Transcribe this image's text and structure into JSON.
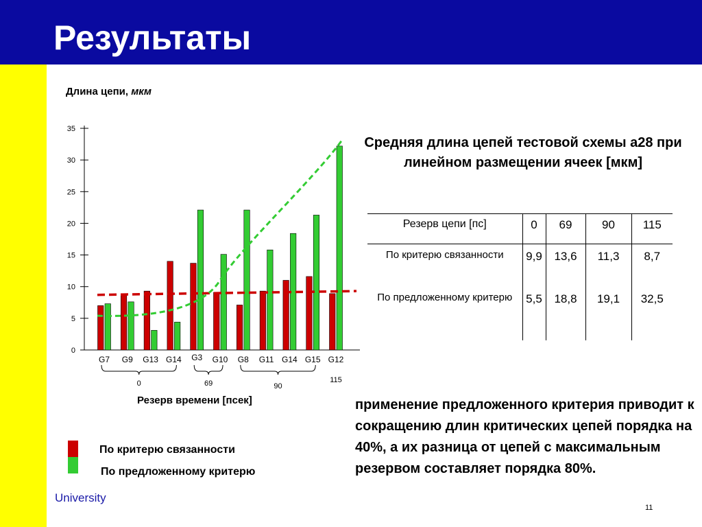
{
  "header": {
    "title": "Результаты"
  },
  "footer": {
    "university": "University",
    "page_number": "11"
  },
  "colors": {
    "header_bg": "#0a0aa0",
    "sidebar": "#ffff00",
    "red_series": "#cc0000",
    "green_series": "#33cc33"
  },
  "chart_data": {
    "type": "bar",
    "ylabel_text": "Длина цепи, ",
    "ylabel_unit": "мкм",
    "xlabel": "Резерв времени [псек]",
    "ylim": [
      0,
      35
    ],
    "yticks": [
      "0",
      "5",
      "10",
      "15",
      "20",
      "25",
      "30",
      "35"
    ],
    "categories": [
      "G7",
      "G9",
      "G13",
      "G14",
      "G3",
      "G10",
      "G8",
      "G11",
      "G14",
      "G15",
      "G12"
    ],
    "groups": [
      {
        "label": "0"
      },
      {
        "label": "69"
      },
      {
        "label": "90"
      },
      {
        "label": "115"
      }
    ],
    "series": [
      {
        "name": "По критерю связанности",
        "values": [
          7,
          8.8,
          9.3,
          14,
          13.7,
          9.1,
          7.1,
          9.3,
          11,
          11.6,
          8.9
        ]
      },
      {
        "name": "По предложенному критерю",
        "values": [
          7.3,
          7.6,
          3.1,
          4.4,
          22.1,
          15.1,
          22.1,
          15.8,
          18.4,
          21.3,
          32.2
        ]
      }
    ],
    "trend_lines": [
      {
        "color": "#cc0000",
        "points": [
          [
            0,
            8.7
          ],
          [
            11,
            9.3
          ]
        ]
      },
      {
        "color": "#33cc33",
        "points": [
          [
            0,
            5.4
          ],
          [
            11,
            33
          ]
        ]
      }
    ]
  },
  "table": {
    "title": "Средняя длина цепей  тестовой схемы a28 при линейном размещении ячеек [мкм]",
    "header_label": "Резерв цепи [пс]",
    "columns": [
      "0",
      "69",
      "90",
      "115"
    ],
    "rows": [
      {
        "label": "По критерю связанности",
        "values": [
          "9,9",
          "13,6",
          "11,3",
          "8,7"
        ]
      },
      {
        "label": "По предложенному критерю",
        "values": [
          "5,5",
          "18,8",
          "19,1",
          "32,5"
        ]
      }
    ]
  },
  "legend": {
    "red_label": "По критерю связанности",
    "green_label": "По предложенному критерю"
  },
  "conclusion": "применение предложенного критерия приводит к сокращению длин критических цепей порядка на 40%, а их разница от цепей с максимальным резервом составляет порядка 80%."
}
